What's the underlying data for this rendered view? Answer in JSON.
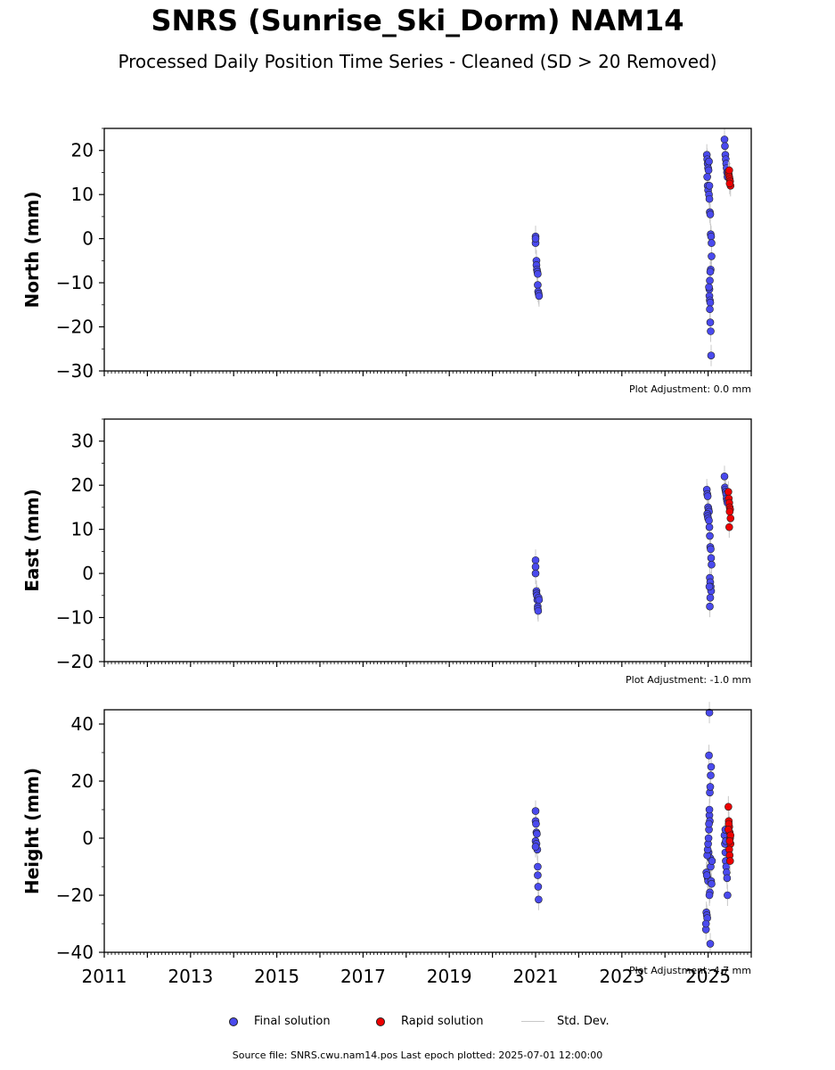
{
  "title": "SNRS (Sunrise_Ski_Dorm) NAM14",
  "subtitle": "Processed Daily Position Time Series - Cleaned (SD > 20 Removed)",
  "colors": {
    "final": "#4a4aee",
    "rapid": "#ee0000",
    "stddev": "#c8c8c8"
  },
  "legend": {
    "final": "Final solution",
    "rapid": "Rapid solution",
    "stddev": "Std. Dev."
  },
  "source_text": "Source file: SNRS.cwu.nam14.pos  Last epoch plotted: 2025-07-01 12:00:00",
  "chart_data": [
    {
      "type": "scatter",
      "ylabel": "North (mm)",
      "adjustment": "Plot Adjustment: 0.0 mm",
      "xlim": [
        2011,
        2026
      ],
      "ylim": [
        -30,
        25
      ],
      "yticks": [
        -30,
        -20,
        -10,
        0,
        10,
        20
      ],
      "series": [
        {
          "name": "Final solution",
          "x": [
            2021.0,
            2021.0,
            2021.0,
            2021.02,
            2021.02,
            2021.03,
            2021.04,
            2021.05,
            2021.05,
            2021.06,
            2021.07,
            2021.08,
            2024.97,
            2024.98,
            2024.99,
            2025.0,
            2025.01,
            2025.02,
            2024.98,
            2024.99,
            2025.0,
            2025.02,
            2025.03,
            2025.04,
            2025.05,
            2025.06,
            2025.07,
            2025.08,
            2025.08,
            2025.06,
            2025.05,
            2025.04,
            2025.03,
            2025.02,
            2025.03,
            2025.04,
            2025.05,
            2025.06,
            2025.07,
            2025.05,
            2025.04,
            2025.03,
            2025.38,
            2025.39,
            2025.4,
            2025.41,
            2025.42,
            2025.43,
            2025.44,
            2025.45
          ],
          "y": [
            0.5,
            -1,
            0,
            -5,
            -6,
            -7,
            -7.5,
            -8,
            -10.5,
            -12,
            -12.5,
            -13,
            19,
            18,
            17,
            16,
            15.5,
            17.5,
            14,
            12,
            11,
            10,
            9,
            6,
            5.5,
            1,
            0.5,
            -1,
            -4,
            -7,
            -7.5,
            -9.5,
            -11.5,
            -11,
            -13,
            -14,
            -19,
            -21,
            -26.5,
            -14.5,
            -16,
            12,
            22.5,
            21,
            19,
            18,
            17,
            16,
            15,
            14
          ]
        },
        {
          "name": "Rapid solution",
          "x": [
            2025.47,
            2025.48,
            2025.49,
            2025.5,
            2025.51,
            2025.52,
            2025.49,
            2025.5
          ],
          "y": [
            15,
            14.5,
            14,
            13.5,
            13,
            12,
            15.5,
            12.5
          ]
        }
      ]
    },
    {
      "type": "scatter",
      "ylabel": "East (mm)",
      "adjustment": "Plot Adjustment: -1.0 mm",
      "xlim": [
        2011,
        2026
      ],
      "ylim": [
        -20,
        35
      ],
      "yticks": [
        -20,
        -10,
        0,
        10,
        20,
        30
      ],
      "series": [
        {
          "name": "Final solution",
          "x": [
            2021.0,
            2021.0,
            2021.0,
            2021.02,
            2021.02,
            2021.03,
            2021.04,
            2021.05,
            2021.05,
            2021.06,
            2021.07,
            2021.08,
            2024.97,
            2024.98,
            2024.99,
            2025.0,
            2025.01,
            2025.02,
            2024.98,
            2024.99,
            2025.0,
            2025.02,
            2025.03,
            2025.04,
            2025.05,
            2025.06,
            2025.07,
            2025.08,
            2025.04,
            2025.05,
            2025.06,
            2025.07,
            2025.05,
            2025.04,
            2025.03,
            2025.38,
            2025.39,
            2025.4,
            2025.41,
            2025.42,
            2025.43,
            2025.44,
            2025.45
          ],
          "y": [
            3,
            1.5,
            0,
            -4,
            -4.5,
            -5,
            -6,
            -7.5,
            -8,
            -8.5,
            -5.5,
            -6,
            19,
            18,
            17.5,
            15,
            14.5,
            14,
            13.5,
            13,
            12.5,
            12,
            10.5,
            8.5,
            6,
            5.5,
            3.5,
            2,
            -1,
            -2,
            -3,
            -4,
            -5.5,
            -7.5,
            -3,
            22,
            19.5,
            19,
            18.5,
            18,
            17,
            16.5,
            16
          ]
        },
        {
          "name": "Rapid solution",
          "x": [
            2025.47,
            2025.48,
            2025.49,
            2025.5,
            2025.51,
            2025.52,
            2025.49,
            2025.5
          ],
          "y": [
            18.5,
            17,
            16,
            15,
            14.5,
            12.5,
            10.5,
            14
          ]
        }
      ]
    },
    {
      "type": "scatter",
      "ylabel": "Height (mm)",
      "adjustment": "Plot Adjustment: 4.7 mm",
      "xlim": [
        2011,
        2026
      ],
      "ylim": [
        -40,
        45
      ],
      "yticks": [
        -40,
        -20,
        0,
        20,
        40
      ],
      "xticks": [
        2011,
        2013,
        2015,
        2017,
        2019,
        2021,
        2023,
        2025
      ],
      "series": [
        {
          "name": "Final solution",
          "x": [
            2021.0,
            2021.0,
            2021.0,
            2021.02,
            2021.02,
            2021.03,
            2021.04,
            2021.05,
            2021.05,
            2021.06,
            2021.07,
            2021.0,
            2021.01,
            2024.95,
            2024.96,
            2024.97,
            2024.98,
            2024.99,
            2025.0,
            2025.01,
            2025.02,
            2025.03,
            2025.04,
            2025.05,
            2025.06,
            2025.07,
            2025.08,
            2025.09,
            2024.96,
            2024.97,
            2024.98,
            2024.99,
            2025.0,
            2025.01,
            2025.02,
            2025.03,
            2025.04,
            2025.05,
            2025.06,
            2025.07,
            2025.02,
            2025.03,
            2025.04,
            2025.05,
            2025.03,
            2024.95,
            2025.38,
            2025.39,
            2025.4,
            2025.41,
            2025.42,
            2025.43,
            2025.44,
            2025.45,
            2025.4,
            2025.41
          ],
          "y": [
            9.5,
            6,
            -1,
            -2,
            2,
            1.5,
            -4,
            -10,
            -13,
            -17,
            -21.5,
            -3,
            5,
            -32,
            -26,
            -27,
            -28,
            -14,
            -15,
            -5,
            3,
            8,
            6,
            -7,
            -10,
            -15,
            -16,
            -8,
            -12,
            -13,
            -6,
            -4,
            -2,
            0,
            5,
            10,
            16,
            18,
            22,
            25,
            29,
            44,
            -19,
            -37,
            -20,
            -30,
            1,
            -2,
            -5,
            -8,
            -10,
            -12,
            -14,
            -20,
            3,
            -1
          ]
        },
        {
          "name": "Rapid solution",
          "x": [
            2025.47,
            2025.48,
            2025.49,
            2025.5,
            2025.51,
            2025.52,
            2025.49,
            2025.5,
            2025.51,
            2025.48,
            2025.47,
            2025.52,
            2025.5
          ],
          "y": [
            11,
            6,
            4,
            2,
            0,
            -2,
            -4,
            -6,
            -8,
            5,
            3,
            1,
            -1
          ]
        }
      ]
    }
  ]
}
